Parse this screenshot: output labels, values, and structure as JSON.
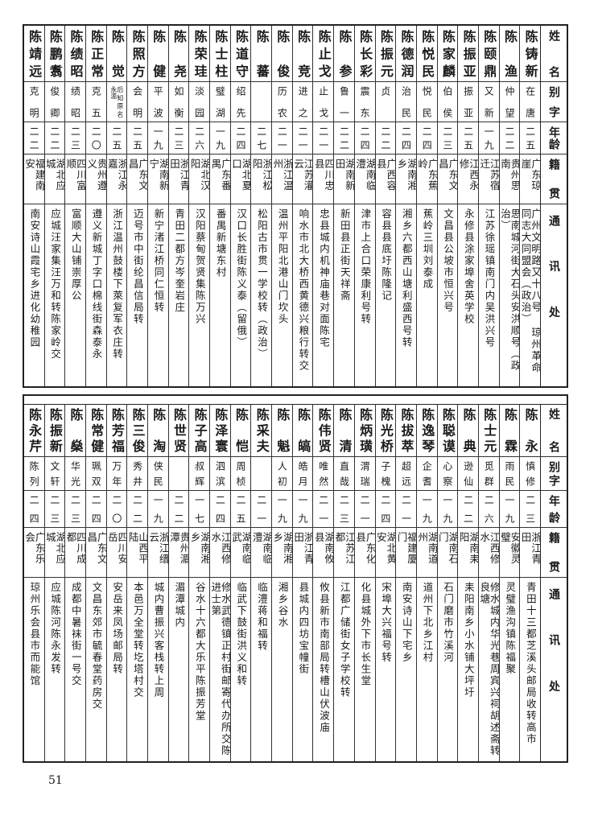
{
  "headers": {
    "name": "姓名",
    "alias": "别字",
    "age": "年龄",
    "origin": "籍贯",
    "address": "通讯处"
  },
  "tables": [
    {
      "rows": [
        {
          "name": "陈铸新",
          "alias": "在唐",
          "age": "二五",
          "origin": "广东琼崖",
          "address": "广州文明路又十八号 琼州革命同志大同盟会（政治）"
        },
        {
          "name": "陈渔",
          "alias": "仲望",
          "age": "二二",
          "origin": "贵州思南",
          "address": "思南城河街大石头安洪顺号（政治）"
        },
        {
          "name": "陈颐鼎",
          "alias": "又新",
          "age": "一九",
          "origin": "江苏宿迁",
          "address": "江苏徐瑶镇南门内吴洪兴号"
        },
        {
          "name": "陈振亚",
          "alias": "振亚",
          "age": "二五",
          "origin": "江西永修",
          "address": "永修县涂家埠舍英学校"
        },
        {
          "name": "陈家麟",
          "alias": "伯侯",
          "age": "二三",
          "origin": "广东文昌",
          "address": "文昌县公坡市恒兴号"
        },
        {
          "name": "陈悦民",
          "alias": "悦民",
          "age": "二四",
          "origin": "广东蕉岭",
          "address": "蕉岭三圳刘泰成"
        },
        {
          "name": "陈德润",
          "alias": "治民",
          "age": "二四",
          "origin": "湖南湘乡",
          "address": "湘乡六都西山塘利盛西号转"
        },
        {
          "name": "陈振元",
          "alias": "贞",
          "age": "二二",
          "origin": "广西容县",
          "address": "容县县底圩陈隆记"
        },
        {
          "name": "陈长彩",
          "alias": "震东",
          "age": "二四",
          "origin": "湖南临澧",
          "address": "津市上合口荣康利号转"
        },
        {
          "name": "陈参",
          "alias": "鲁一",
          "age": "二二",
          "origin": "湖南新田",
          "address": "新田县正街天祥斋"
        },
        {
          "name": "陈止戈",
          "alias": "止戈",
          "age": "二一",
          "origin": "四川忠县",
          "address": "忠县城内机神庙巷对面陈宅"
        },
        {
          "name": "陈竞",
          "alias": "进之",
          "age": "二一",
          "origin": "江苏灌云",
          "address": "响水市北大桥西黄德兴粮行转交"
        },
        {
          "name": "陈俊",
          "alias": "历农",
          "age": "二一",
          "origin": "浙江温州",
          "address": "温州平阳北港山门坎头"
        },
        {
          "name": "陈蕃",
          "alias": "",
          "age": "二七",
          "origin": "浙江松阳",
          "address": "松阳古市贯一学校转（政治）"
        },
        {
          "name": "陈道守",
          "alias": "绍先",
          "age": "二四",
          "origin": "湖北夏口",
          "address": "汉口长胜街陈义泰（留俄）"
        },
        {
          "name": "陈士柱",
          "alias": "璧湖",
          "age": "一九",
          "origin": "广东番禺",
          "address": "番禺新塘东村"
        },
        {
          "name": "陈荣珪",
          "alias": "淡园",
          "age": "二六",
          "origin": "湖北汉阳",
          "address": "汉阳蔡甸贺贤集陈万兴"
        },
        {
          "name": "陈尧",
          "alias": "如衡",
          "age": "二三",
          "origin": "浙江青田",
          "address": "青田二都方岑奎岩庄"
        },
        {
          "name": "陈健",
          "alias": "平波",
          "age": "一九",
          "origin": "湖南新宁",
          "address": "新宁渚江桥同仁恒转"
        },
        {
          "name": "陈照方",
          "alias": "会明",
          "age": "二五",
          "origin": "广东文昌",
          "address": "迈号市中街纶昌信局转"
        },
        {
          "name": "陈觉",
          "alias": "后知原名永滥",
          "age": "二五",
          "origin": "浙江永嘉",
          "address": "浙江温州鼓楼下萊复军衣庄转"
        },
        {
          "name": "陈正常",
          "alias": "克五",
          "age": "二〇",
          "origin": "贵州遵义",
          "address": "遵义新城丁字口棉线街森泰永"
        },
        {
          "name": "陈绩昭",
          "alias": "绩昭",
          "age": "二三",
          "origin": "四川富顺",
          "address": "富顺大山铺崇厚公"
        },
        {
          "name": "陈鹏翥",
          "alias": "俊卿",
          "age": "二二",
          "origin": "湖北应城",
          "address": "应城汪家集汪万和转陈家岭交"
        },
        {
          "name": "陈靖远",
          "alias": "克明",
          "age": "二二",
          "origin": "福建南安",
          "address": "南安诗山霞宅乡进化幼稚园"
        }
      ]
    },
    {
      "rows": [
        {
          "name": "陈永",
          "alias": "慎修",
          "age": "二三",
          "origin": "浙江青田",
          "address": "青田十三都芝溪头邮局收转高市"
        },
        {
          "name": "陈霖",
          "alias": "雨民",
          "age": "一九",
          "origin": "安徽灵璧",
          "address": "灵璧渔沟镇陈福聚"
        },
        {
          "name": "陈士元",
          "alias": "觅群",
          "age": "二六",
          "origin": "江西修水",
          "address": "修水城内华光巷周宾兴祠胡述斋转良塘"
        },
        {
          "name": "陈典",
          "alias": "逊仙",
          "age": "二二",
          "origin": "湖南耒阳",
          "address": "耒阳南乡小水铺大坪圩"
        },
        {
          "name": "陈聪谟",
          "alias": "心察",
          "age": "一九",
          "origin": "湖南石门",
          "address": "石门磨市竹溪河"
        },
        {
          "name": "陈逸琴",
          "alias": "企耆",
          "age": "一九",
          "origin": "湖南道州",
          "address": "道州下北乡江村"
        },
        {
          "name": "陈拔萃",
          "alias": "超远",
          "age": "二一",
          "origin": "福建厦门",
          "address": "南安诗山下宅乡"
        },
        {
          "name": "陈光桥",
          "alias": "子槐",
          "age": "二四",
          "origin": "湖北黄安",
          "address": "宋埠大兴福号转"
        },
        {
          "name": "陈炳璜",
          "alias": "渭瑞",
          "age": "二一",
          "origin": "广东化县",
          "address": "化县城外下市长生堂"
        },
        {
          "name": "陈清",
          "alias": "直哉",
          "age": "二三",
          "origin": "江苏江都",
          "address": "江都广储街女子学校转"
        },
        {
          "name": "陈伟贤",
          "alias": "唯然",
          "age": "二一",
          "origin": "湖南攸县",
          "address": "攸县新市南部局转槽山伏波庙"
        },
        {
          "name": "陈皜",
          "alias": "皓月",
          "age": "一九",
          "origin": "浙江青田",
          "address": "县城内四坊宝幢街"
        },
        {
          "name": "陈魁",
          "alias": "人初",
          "age": "一九",
          "origin": "湖南湘乡",
          "address": "湘乡谷水"
        },
        {
          "name": "陈采夫",
          "alias": "",
          "age": "二一",
          "origin": "湖南临澧",
          "address": "临澧蒋和福转"
        },
        {
          "name": "陈恺",
          "alias": "周桢",
          "age": "二五",
          "origin": "湖南临武",
          "address": "临武下鼓街洪义和转"
        },
        {
          "name": "陈泽寰",
          "alias": "泗滨",
          "age": "二四",
          "origin": "江西修水",
          "address": "修水武德镇正村街邮寄代办所交陈进士第"
        },
        {
          "name": "陈子高",
          "alias": "叔辉",
          "age": "一七",
          "origin": "湖南湘乡",
          "address": "谷水十六都大乐平陈振芳堂"
        },
        {
          "name": "陈世贤",
          "alias": "",
          "age": "二二",
          "origin": "贵州湄潭",
          "address": "湄潭城内"
        },
        {
          "name": "陈淘",
          "alias": "侠民",
          "age": "一九",
          "origin": "浙江缙云",
          "address": "城内曹振兴客栈转上周"
        },
        {
          "name": "陈三俊",
          "alias": "秀井",
          "age": "二二",
          "origin": "山西平陆",
          "address": "本邑万全堂转圪塔村交"
        },
        {
          "name": "陈芳福",
          "alias": "万年",
          "age": "二〇",
          "origin": "四川安岳",
          "address": "安岳来凤场邮局转"
        },
        {
          "name": "陈常健",
          "alias": "珮双",
          "age": "二四",
          "origin": "广东文昌",
          "address": "文昌东郊市毓春堂药房交"
        },
        {
          "name": "陈燊",
          "alias": "华光",
          "age": "二三",
          "origin": "四川成都",
          "address": "成都中暑袜街一号交"
        },
        {
          "name": "陈振新",
          "alias": "文轩",
          "age": "二三",
          "origin": "湖北应城",
          "address": "应城陈河陈永发转"
        },
        {
          "name": "陈永芹",
          "alias": "陈列",
          "age": "二四",
          "origin": "广东乐会",
          "address": "琼州乐会县市而能馆"
        }
      ]
    }
  ],
  "page_number": "51"
}
